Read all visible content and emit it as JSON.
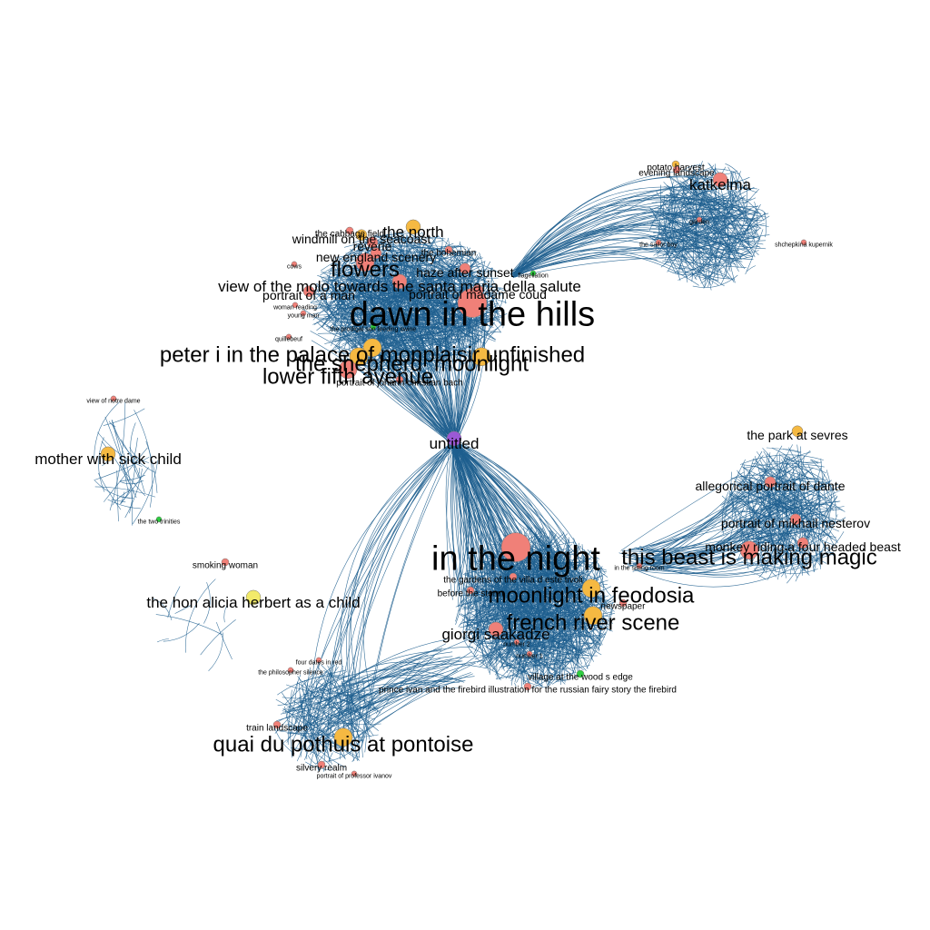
{
  "colors": {
    "background": "#ffffff",
    "edge": "#1f5f8f",
    "node_salmon": "#f08078",
    "node_orange": "#f5b942",
    "node_green": "#2ecc40",
    "node_purple": "#9b59d6",
    "node_yellow": "#f2ea6a",
    "label": "#000000"
  },
  "clusters": [
    {
      "id": "c1",
      "dense": "high"
    },
    {
      "id": "c2",
      "dense": "high"
    },
    {
      "id": "c3",
      "dense": "high"
    },
    {
      "id": "c4",
      "dense": "medium"
    },
    {
      "id": "c5",
      "dense": "low"
    },
    {
      "id": "c6",
      "dense": "low"
    },
    {
      "id": "c7",
      "dense": "medium"
    }
  ],
  "labels": [
    {
      "text": "dawn in the hills",
      "tier": "xl",
      "color": "salmon",
      "cluster": "c1"
    },
    {
      "text": "peter i in the palace of monplaisir unfinished",
      "tier": "l",
      "color": "orange",
      "cluster": "c1"
    },
    {
      "text": "the shepherd",
      "tier": "l",
      "color": "orange",
      "cluster": "c1"
    },
    {
      "text": "moonlight",
      "tier": "l",
      "color": "orange",
      "cluster": "c1"
    },
    {
      "text": "lower fifth avenue",
      "tier": "l",
      "color": "salmon",
      "cluster": "c1"
    },
    {
      "text": "flowers",
      "tier": "l",
      "color": "salmon",
      "cluster": "c1"
    },
    {
      "text": "the north",
      "tier": "m",
      "color": "orange",
      "cluster": "c1"
    },
    {
      "text": "view of the molo towards the santa maria della salute",
      "tier": "m",
      "color": "salmon",
      "cluster": "c1"
    },
    {
      "text": "windmill on the seacoast",
      "tier": "s",
      "color": "orange",
      "cluster": "c1"
    },
    {
      "text": "reverie",
      "tier": "s",
      "color": "salmon",
      "cluster": "c1"
    },
    {
      "text": "new england scenery",
      "tier": "s",
      "color": "salmon",
      "cluster": "c1"
    },
    {
      "text": "the cabbage field",
      "tier": "xs",
      "color": "salmon",
      "cluster": "c1"
    },
    {
      "text": "the bohemian",
      "tier": "xs",
      "color": "salmon",
      "cluster": "c1"
    },
    {
      "text": "haze after sunset",
      "tier": "s",
      "color": "salmon",
      "cluster": "c1"
    },
    {
      "text": "flagellation",
      "tier": "xxs",
      "color": "green",
      "cluster": "c1"
    },
    {
      "text": "portrait of a man",
      "tier": "s",
      "color": "salmon",
      "cluster": "c1"
    },
    {
      "text": "portrait of madame coud",
      "tier": "s",
      "color": "salmon",
      "cluster": "c1"
    },
    {
      "text": "cows",
      "tier": "xxs",
      "color": "salmon",
      "cluster": "c1"
    },
    {
      "text": "woman reading",
      "tier": "xxs",
      "color": "salmon",
      "cluster": "c1"
    },
    {
      "text": "young man",
      "tier": "xxs",
      "color": "salmon",
      "cluster": "c1"
    },
    {
      "text": "the prodigal son feeding swine",
      "tier": "xxs",
      "color": "green",
      "cluster": "c1"
    },
    {
      "text": "quillebeuf",
      "tier": "xxs",
      "color": "salmon",
      "cluster": "c1"
    },
    {
      "text": "portrait of johann christian bach",
      "tier": "xs",
      "color": "salmon",
      "cluster": "c1"
    },
    {
      "text": "untitled",
      "tier": "m",
      "color": "purple",
      "cluster": "hub"
    },
    {
      "text": "potato harvest",
      "tier": "xs",
      "color": "orange",
      "cluster": "c2"
    },
    {
      "text": "evening landscape",
      "tier": "xs",
      "color": "salmon",
      "cluster": "c2"
    },
    {
      "text": "katkelma",
      "tier": "m",
      "color": "salmon",
      "cluster": "c2"
    },
    {
      "text": "the sailor boy",
      "tier": "xxs",
      "color": "salmon",
      "cluster": "c2"
    },
    {
      "text": "garden",
      "tier": "xxs",
      "color": "salmon",
      "cluster": "c2"
    },
    {
      "text": "shchepkina kupernik",
      "tier": "xxs",
      "color": "salmon",
      "cluster": "c2"
    },
    {
      "text": "in the night",
      "tier": "xl",
      "color": "salmon",
      "cluster": "c3"
    },
    {
      "text": "moonlight in feodosia",
      "tier": "l",
      "color": "orange",
      "cluster": "c3"
    },
    {
      "text": "french river scene",
      "tier": "l",
      "color": "orange",
      "cluster": "c3"
    },
    {
      "text": "giorgi saakadze",
      "tier": "m",
      "color": "salmon",
      "cluster": "c3"
    },
    {
      "text": "the gardens of the villa d este tivoli",
      "tier": "xs",
      "color": "salmon",
      "cluster": "c3"
    },
    {
      "text": "before the storm",
      "tier": "xs",
      "color": "salmon",
      "cluster": "c3"
    },
    {
      "text": "in the sitting room",
      "tier": "xxs",
      "color": "salmon",
      "cluster": "c3"
    },
    {
      "text": "newspaper",
      "tier": "xs",
      "color": "salmon",
      "cluster": "c3"
    },
    {
      "text": "number 2",
      "tier": "xxs",
      "color": "salmon",
      "cluster": "c3"
    },
    {
      "text": "number 1",
      "tier": "xxs",
      "color": "salmon",
      "cluster": "c3"
    },
    {
      "text": "village at the wood s edge",
      "tier": "xs",
      "color": "green",
      "cluster": "c3"
    },
    {
      "text": "prince ivan and the firebird illustration for the russian fairy story the firebird",
      "tier": "xs",
      "color": "salmon",
      "cluster": "c3"
    },
    {
      "text": "this beast is making magic",
      "tier": "l",
      "color": "salmon",
      "cluster": "c4"
    },
    {
      "text": "the park at sevres",
      "tier": "s",
      "color": "orange",
      "cluster": "c4"
    },
    {
      "text": "allegorical portrait of dante",
      "tier": "s",
      "color": "salmon",
      "cluster": "c4"
    },
    {
      "text": "portrait of mikhail nesterov",
      "tier": "s",
      "color": "salmon",
      "cluster": "c4"
    },
    {
      "text": "monkey riding a four headed beast",
      "tier": "s",
      "color": "salmon",
      "cluster": "c4"
    },
    {
      "text": "view of notre dame",
      "tier": "xxs",
      "color": "salmon",
      "cluster": "c5"
    },
    {
      "text": "mother with sick child",
      "tier": "m",
      "color": "orange",
      "cluster": "c5"
    },
    {
      "text": "the two trinities",
      "tier": "xxs",
      "color": "green",
      "cluster": "c5"
    },
    {
      "text": "smoking woman",
      "tier": "xs",
      "color": "salmon",
      "cluster": "c6"
    },
    {
      "text": "the hon alicia herbert as a child",
      "tier": "m",
      "color": "yellow",
      "cluster": "c6"
    },
    {
      "text": "four dates in red",
      "tier": "xxs",
      "color": "salmon",
      "cluster": "c7"
    },
    {
      "text": "the philosopher silence",
      "tier": "xxs",
      "color": "salmon",
      "cluster": "c7"
    },
    {
      "text": "train landscape",
      "tier": "xs",
      "color": "salmon",
      "cluster": "c7"
    },
    {
      "text": "quai du pothuis at pontoise",
      "tier": "l",
      "color": "orange",
      "cluster": "c7"
    },
    {
      "text": "silvery realm",
      "tier": "xs",
      "color": "salmon",
      "cluster": "c7"
    },
    {
      "text": "portrait of professor ivanov",
      "tier": "xxs",
      "color": "salmon",
      "cluster": "c7"
    }
  ]
}
